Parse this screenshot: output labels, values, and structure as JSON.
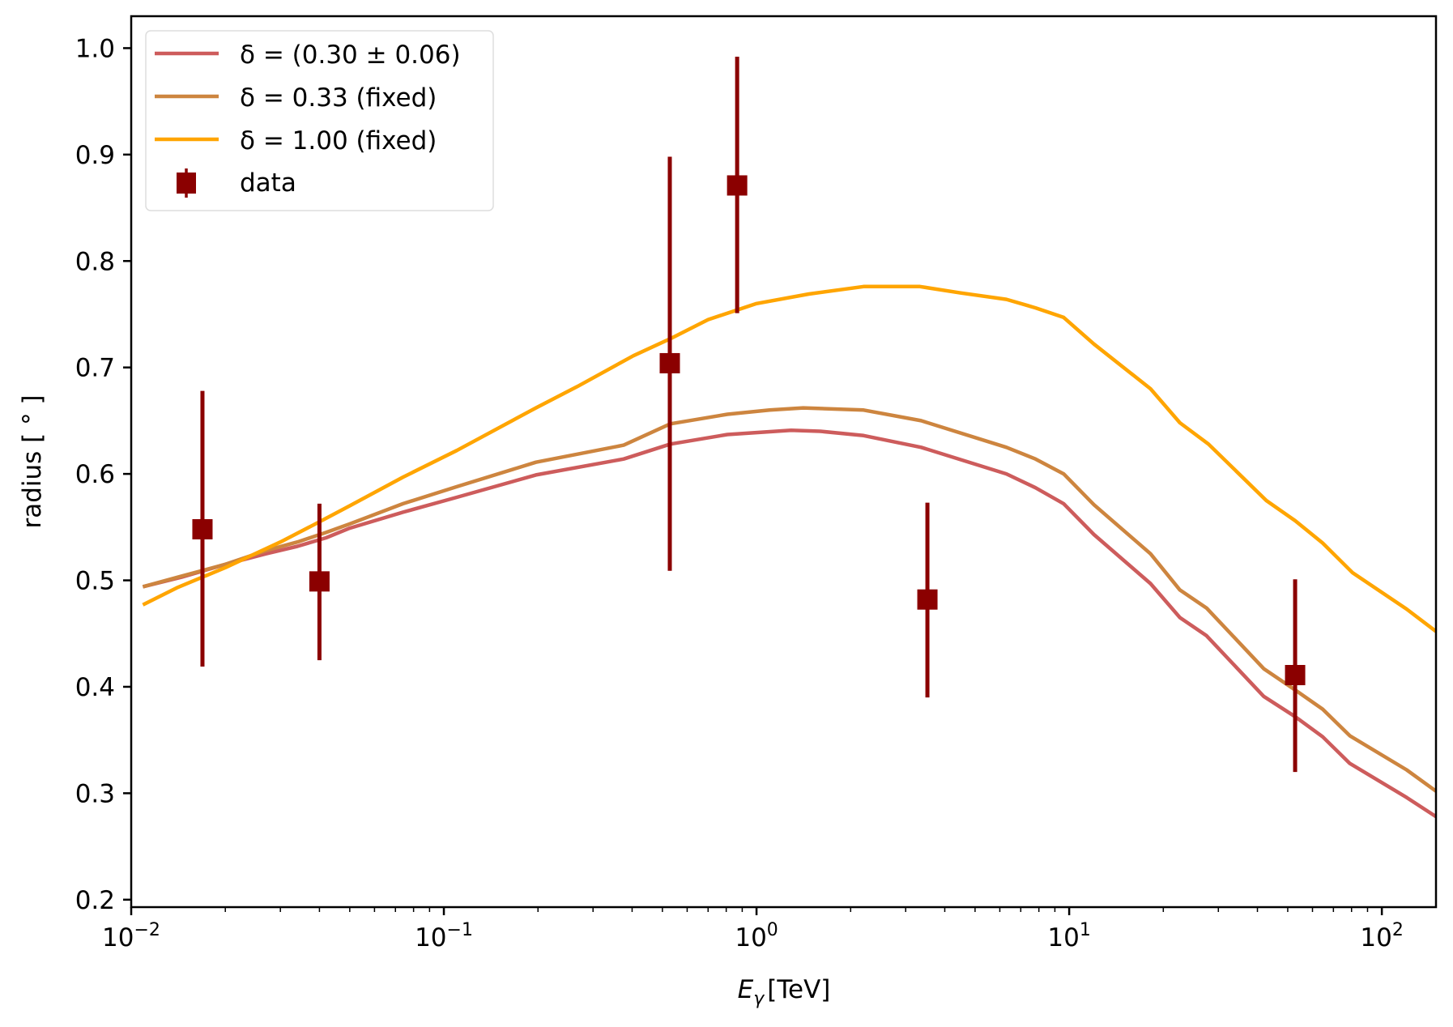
{
  "chart_data": {
    "type": "line",
    "title": "",
    "xlabel": "E_γ [TeV]",
    "xlabel_main": "E",
    "xlabel_sub": "γ",
    "xlabel_unit": "[TeV]",
    "ylabel": "radius [ ° ]",
    "xscale": "log",
    "xlim": [
      0.01,
      149
    ],
    "ylim": [
      0.193,
      1.03
    ],
    "grid": false,
    "legend_position": "top-left",
    "x_ticks": [
      {
        "value": 0.01,
        "base": "10",
        "exp": "−2"
      },
      {
        "value": 0.1,
        "base": "10",
        "exp": "−1"
      },
      {
        "value": 1,
        "base": "10",
        "exp": "0"
      },
      {
        "value": 10,
        "base": "10",
        "exp": "1"
      },
      {
        "value": 100,
        "base": "10",
        "exp": "2"
      }
    ],
    "y_ticks": [
      {
        "value": 0.2,
        "label": "0.2"
      },
      {
        "value": 0.3,
        "label": "0.3"
      },
      {
        "value": 0.4,
        "label": "0.4"
      },
      {
        "value": 0.5,
        "label": "0.5"
      },
      {
        "value": 0.6,
        "label": "0.6"
      },
      {
        "value": 0.7,
        "label": "0.7"
      },
      {
        "value": 0.8,
        "label": "0.8"
      },
      {
        "value": 0.9,
        "label": "0.9"
      },
      {
        "value": 1.0,
        "label": "1.0"
      }
    ],
    "series": [
      {
        "name": "δ = (0.30 ± 0.06)",
        "color": "#cd5c5c",
        "x": [
          0.0109,
          0.0145,
          0.02,
          0.027,
          0.034,
          0.042,
          0.05,
          0.074,
          0.11,
          0.197,
          0.376,
          0.53,
          0.807,
          1.29,
          1.6,
          2.2,
          3.36,
          6.3,
          7.8,
          9.6,
          12.0,
          18.2,
          22.6,
          27.5,
          41.9,
          52.8,
          64.7,
          79.0,
          120.0,
          149.0
        ],
        "y": [
          0.494,
          0.503,
          0.515,
          0.525,
          0.532,
          0.54,
          0.549,
          0.564,
          0.578,
          0.599,
          0.614,
          0.628,
          0.637,
          0.641,
          0.64,
          0.636,
          0.625,
          0.6,
          0.587,
          0.572,
          0.543,
          0.497,
          0.465,
          0.448,
          0.391,
          0.372,
          0.353,
          0.328,
          0.296,
          0.278
        ]
      },
      {
        "name": "δ = 0.33 (fixed)",
        "color": "#cd853f",
        "x": [
          0.0109,
          0.0145,
          0.02,
          0.027,
          0.034,
          0.042,
          0.05,
          0.074,
          0.11,
          0.197,
          0.376,
          0.53,
          0.807,
          1.1,
          1.41,
          2.2,
          3.36,
          6.3,
          7.8,
          9.6,
          12.0,
          18.2,
          22.6,
          27.5,
          41.9,
          52.8,
          64.7,
          79.0,
          120.0,
          149.0
        ],
        "y": [
          0.494,
          0.504,
          0.515,
          0.528,
          0.536,
          0.545,
          0.553,
          0.572,
          0.588,
          0.611,
          0.627,
          0.647,
          0.656,
          0.66,
          0.662,
          0.66,
          0.65,
          0.625,
          0.614,
          0.6,
          0.571,
          0.525,
          0.491,
          0.474,
          0.417,
          0.397,
          0.379,
          0.354,
          0.322,
          0.302
        ]
      },
      {
        "name": "δ = 1.00 (fixed)",
        "color": "#ffa500",
        "x": [
          0.0109,
          0.014,
          0.02,
          0.03,
          0.04,
          0.05,
          0.074,
          0.11,
          0.197,
          0.267,
          0.404,
          0.53,
          0.7,
          1.0,
          1.47,
          2.2,
          3.33,
          4.5,
          6.3,
          7.8,
          9.6,
          12.0,
          18.2,
          22.6,
          27.9,
          42.7,
          52.8,
          64.7,
          80.7,
          120.0,
          149.0
        ],
        "y": [
          0.477,
          0.493,
          0.512,
          0.536,
          0.555,
          0.57,
          0.597,
          0.622,
          0.662,
          0.682,
          0.711,
          0.727,
          0.745,
          0.76,
          0.769,
          0.776,
          0.776,
          0.77,
          0.764,
          0.756,
          0.747,
          0.722,
          0.68,
          0.648,
          0.628,
          0.575,
          0.556,
          0.535,
          0.507,
          0.473,
          0.452
        ]
      }
    ],
    "data_points": {
      "name": "data",
      "color": "#8b0000",
      "points": [
        {
          "x": 0.0169,
          "y": 0.548,
          "y_low": 0.419,
          "y_high": 0.678
        },
        {
          "x": 0.04,
          "y": 0.499,
          "y_low": 0.425,
          "y_high": 0.572
        },
        {
          "x": 0.528,
          "y": 0.704,
          "y_low": 0.509,
          "y_high": 0.898
        },
        {
          "x": 0.867,
          "y": 0.871,
          "y_low": 0.751,
          "y_high": 0.992
        },
        {
          "x": 3.52,
          "y": 0.482,
          "y_low": 0.39,
          "y_high": 0.573
        },
        {
          "x": 52.8,
          "y": 0.411,
          "y_low": 0.32,
          "y_high": 0.501
        }
      ]
    }
  }
}
